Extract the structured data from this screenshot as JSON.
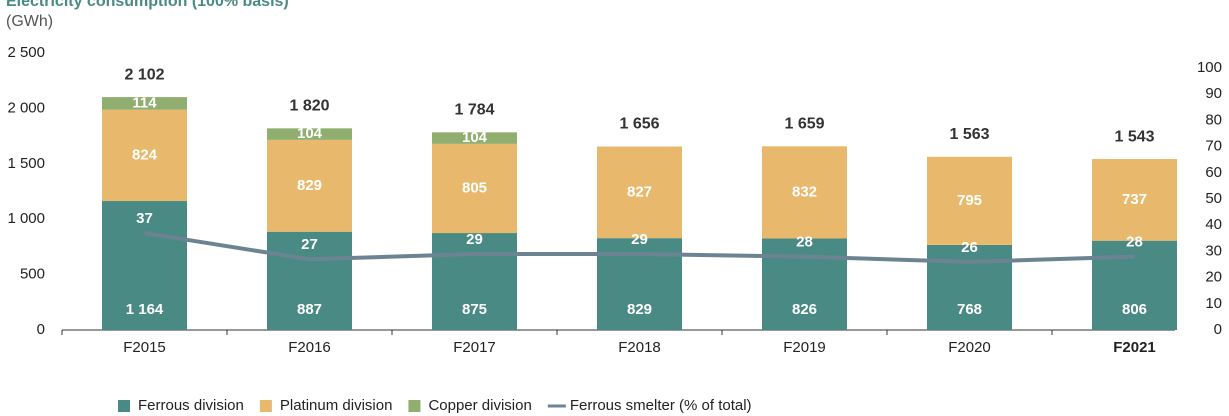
{
  "chart_data": {
    "type": "stacked-bar-line",
    "title": "Electricity consumption (100% basis)",
    "subtitle": "(GWh)",
    "categories": [
      "F2015",
      "F2016",
      "F2017",
      "F2018",
      "F2019",
      "F2020",
      "F2021"
    ],
    "series": [
      {
        "name": "Ferrous division",
        "color": "#4a8a85",
        "values": [
          1164,
          887,
          875,
          829,
          826,
          768,
          806
        ],
        "value_labels": [
          "1 164",
          "887",
          "875",
          "829",
          "826",
          "768",
          "806"
        ]
      },
      {
        "name": "Platinum division",
        "color": "#e8b96c",
        "values": [
          824,
          829,
          805,
          827,
          832,
          795,
          737
        ]
      },
      {
        "name": "Copper division",
        "color": "#8fae6f",
        "values": [
          114,
          104,
          104,
          null,
          null,
          null,
          null
        ]
      },
      {
        "name": "Ferrous smelter (% of total)",
        "color": "#6c8491",
        "axis": "y2",
        "line": true,
        "values": [
          37,
          27,
          29,
          29,
          28,
          26,
          28
        ]
      }
    ],
    "totals": {
      "values": [
        2102,
        1820,
        1784,
        1656,
        1659,
        1563,
        1543
      ],
      "value_labels": [
        "2 102",
        "1 820",
        "1 784",
        "1 656",
        "1 659",
        "1 563",
        "1 543"
      ]
    },
    "ylim": [
      0,
      2500
    ],
    "yticks": [
      0,
      500,
      {
        "value": 1000,
        "label": "1 000"
      },
      {
        "value": 1500,
        "label": "1 500"
      },
      {
        "value": 2000,
        "label": "2 000"
      },
      {
        "value": 2500,
        "label": "2 500"
      }
    ],
    "y2lim": [
      0,
      100
    ],
    "y2ticks": [
      0,
      10,
      20,
      30,
      40,
      50,
      60,
      70,
      80,
      90,
      100
    ],
    "legend": "bottom"
  }
}
